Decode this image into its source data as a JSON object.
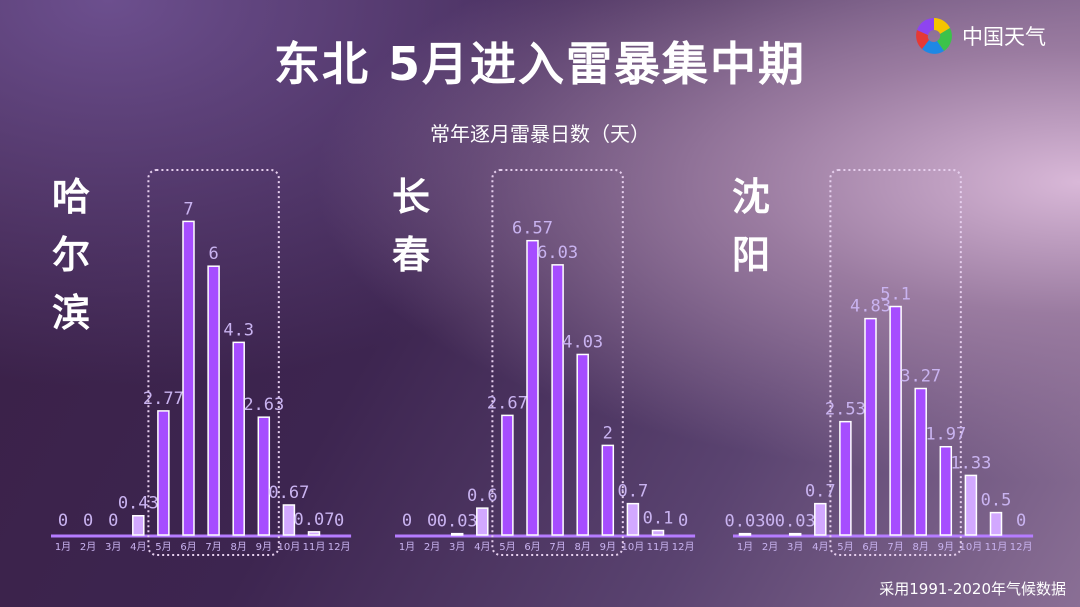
{
  "title": "东北 5月进入雷暴集中期",
  "subtitle": "常年逐月雷暴日数（天）",
  "logo_text": "中国天气",
  "footnote": "采用1991-2020年气候数据",
  "colors": {
    "peak_bar": "#a64dff",
    "other_bar": "#d2a8ff",
    "label": "#c9b3f0",
    "axis": "#b57cff",
    "box": "#e6cfee"
  },
  "chart_data": [
    {
      "type": "bar",
      "city": "哈尔滨",
      "categories": [
        "1月",
        "2月",
        "3月",
        "4月",
        "5月",
        "6月",
        "7月",
        "8月",
        "9月",
        "10月",
        "11月",
        "12月"
      ],
      "values": [
        0,
        0,
        0,
        0.43,
        2.77,
        7,
        6,
        4.3,
        2.63,
        0.67,
        0.07,
        0
      ],
      "highlight_months": [
        "5月",
        "6月",
        "7月",
        "8月",
        "9月"
      ]
    },
    {
      "type": "bar",
      "city": "长春",
      "categories": [
        "1月",
        "2月",
        "3月",
        "4月",
        "5月",
        "6月",
        "7月",
        "8月",
        "9月",
        "10月",
        "11月",
        "12月"
      ],
      "values": [
        0,
        0,
        0.03,
        0.6,
        2.67,
        6.57,
        6.03,
        4.03,
        2,
        0.7,
        0.1,
        0
      ],
      "highlight_months": [
        "5月",
        "6月",
        "7月",
        "8月",
        "9月"
      ]
    },
    {
      "type": "bar",
      "city": "沈阳",
      "categories": [
        "1月",
        "2月",
        "3月",
        "4月",
        "5月",
        "6月",
        "7月",
        "8月",
        "9月",
        "10月",
        "11月",
        "12月"
      ],
      "values": [
        0.03,
        0,
        0.03,
        0.7,
        2.53,
        4.83,
        5.1,
        3.27,
        1.97,
        1.33,
        0.5,
        0
      ],
      "highlight_months": [
        "5月",
        "6月",
        "7月",
        "8月",
        "9月"
      ]
    }
  ]
}
